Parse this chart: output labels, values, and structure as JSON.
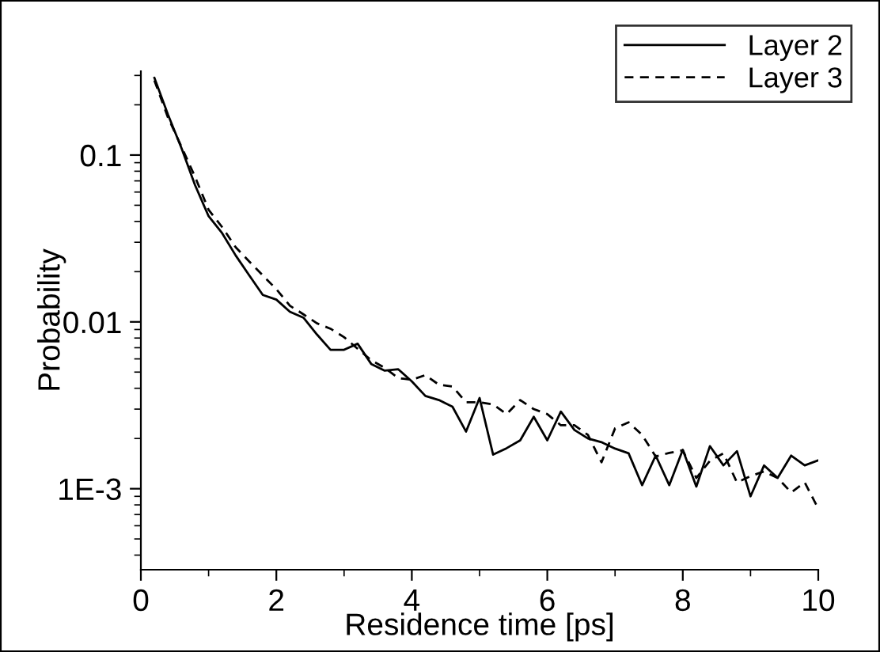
{
  "chart_data": {
    "type": "line",
    "xlabel": "Residence time [ps]",
    "ylabel": "Probability",
    "x": [
      0.2,
      0.4,
      0.6,
      0.8,
      1.0,
      1.2,
      1.4,
      1.6,
      1.8,
      2.0,
      2.2,
      2.4,
      2.6,
      2.8,
      3.0,
      3.2,
      3.4,
      3.6,
      3.8,
      4.0,
      4.2,
      4.4,
      4.6,
      4.8,
      5.0,
      5.2,
      5.4,
      5.6,
      5.8,
      6.0,
      6.2,
      6.4,
      6.6,
      6.8,
      7.0,
      7.2,
      7.4,
      7.6,
      7.8,
      8.0,
      8.2,
      8.4,
      8.6,
      8.8,
      9.0,
      9.2,
      9.4,
      9.6,
      9.8,
      10.0
    ],
    "series": [
      {
        "name": "Layer 2",
        "color": "#000000",
        "line_style": "solid",
        "values": [
          0.29,
          0.175,
          0.11,
          0.066,
          0.043,
          0.034,
          0.025,
          0.019,
          0.0145,
          0.0136,
          0.0115,
          0.0106,
          0.0084,
          0.0068,
          0.0068,
          0.0074,
          0.0056,
          0.0051,
          0.0052,
          0.0044,
          0.0036,
          0.0034,
          0.0031,
          0.0022,
          0.0035,
          0.0016,
          0.00175,
          0.00195,
          0.0027,
          0.00195,
          0.0029,
          0.00225,
          0.002,
          0.0019,
          0.00174,
          0.00163,
          0.00105,
          0.00158,
          0.00105,
          0.00171,
          0.00103,
          0.0018,
          0.00138,
          0.00168,
          0.0009,
          0.00138,
          0.00116,
          0.00158,
          0.00138,
          0.00148
        ]
      },
      {
        "name": "Layer 3",
        "color": "#000000",
        "line_style": "dashed",
        "values": [
          0.28,
          0.168,
          0.112,
          0.074,
          0.047,
          0.037,
          0.028,
          0.023,
          0.019,
          0.0157,
          0.0125,
          0.0111,
          0.0098,
          0.0091,
          0.0081,
          0.0069,
          0.0059,
          0.0053,
          0.0046,
          0.0045,
          0.0048,
          0.0042,
          0.0041,
          0.0033,
          0.0033,
          0.0032,
          0.0028,
          0.0034,
          0.003,
          0.0028,
          0.0024,
          0.0024,
          0.0021,
          0.00144,
          0.0023,
          0.0025,
          0.0021,
          0.00156,
          0.00164,
          0.0017,
          0.00116,
          0.00147,
          0.00163,
          0.00109,
          0.00119,
          0.00127,
          0.00116,
          0.00095,
          0.00109,
          0.00076
        ]
      }
    ],
    "log": "y",
    "xlim": [
      0,
      10
    ],
    "xticks": [
      0,
      2,
      4,
      6,
      8,
      10
    ],
    "ylim": [
      0.000327,
      0.318
    ],
    "yticks": [
      0.1,
      0.01,
      {
        "value": 0.001,
        "label": "1E-3"
      }
    ],
    "grid": false,
    "legend": "top right",
    "marker": "none"
  }
}
